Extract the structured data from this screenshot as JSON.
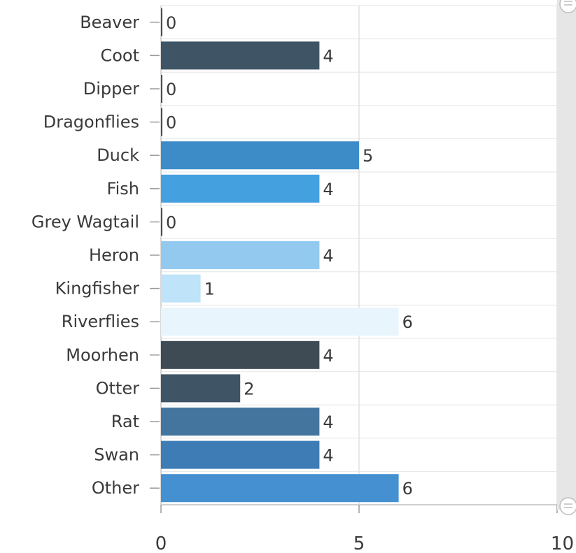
{
  "chart_data": {
    "type": "bar",
    "orientation": "horizontal",
    "categories": [
      "Beaver",
      "Coot",
      "Dipper",
      "Dragonflies",
      "Duck",
      "Fish",
      "Grey Wagtail",
      "Heron",
      "Kingfisher",
      "Riverflies",
      "Moorhen",
      "Otter",
      "Rat",
      "Swan",
      "Other"
    ],
    "values": [
      0,
      4,
      0,
      0,
      5,
      4,
      0,
      4,
      1,
      6,
      4,
      2,
      4,
      4,
      6
    ],
    "colors": [
      "#3f4f5c",
      "#3f5566",
      "#3f4f5c",
      "#3f4f5c",
      "#3d8cc8",
      "#45a0e0",
      "#3f4f5c",
      "#93c9ef",
      "#bfe3f8",
      "#e8f5fd",
      "#3e4a54",
      "#3f5566",
      "#44759f",
      "#3e7cb5",
      "#4490d0"
    ],
    "xlim": [
      0,
      10
    ],
    "xticks": [
      "0",
      "5",
      "10"
    ],
    "grid": true,
    "xlabel": "",
    "ylabel": "",
    "title": ""
  }
}
